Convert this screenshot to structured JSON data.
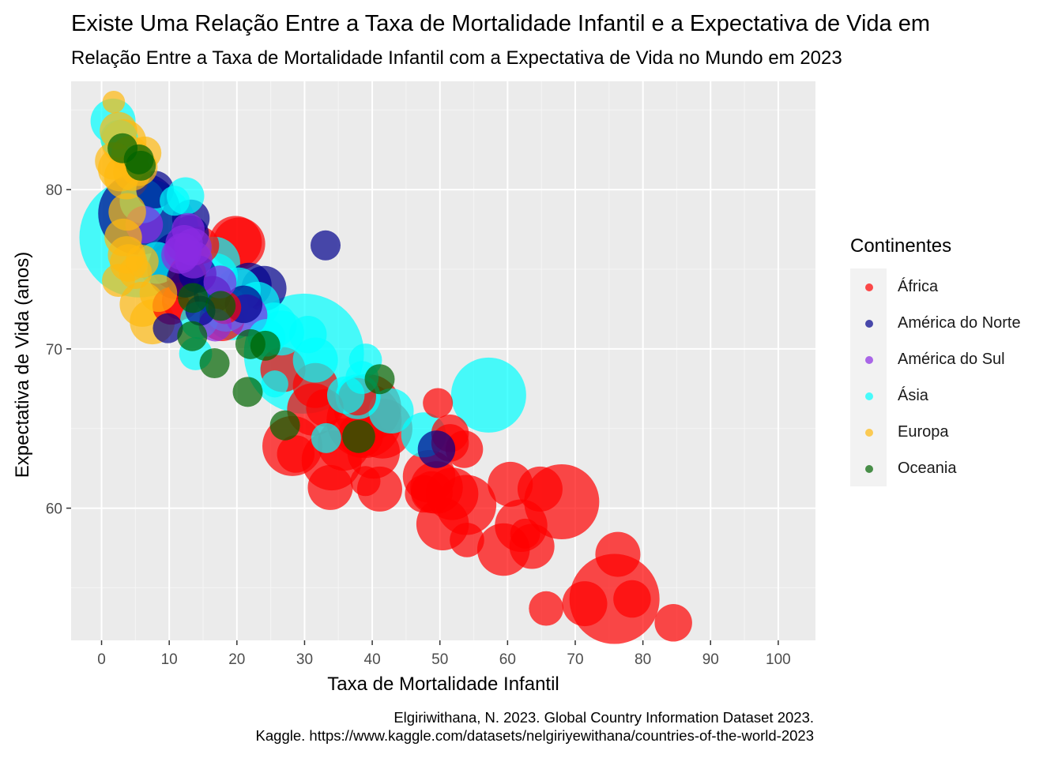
{
  "title": "Existe Uma Relação Entre a Taxa de Mortalidade Infantil e a Expectativa de Vida em",
  "subtitle": "Relação Entre a Taxa de Mortalidade Infantil com a Expectativa de Vida no Mundo em 2023",
  "caption": {
    "line1": "Elgiriwithana, N. 2023. Global Country Information Dataset 2023.",
    "line2": "Kaggle. https://www.kaggle.com/datasets/nelgiriyewithana/countries-of-the-world-2023"
  },
  "legend": {
    "title": "Continentes",
    "items": [
      {
        "label": "África",
        "color": "#ff0000"
      },
      {
        "label": "América do Norte",
        "color": "#00008b"
      },
      {
        "label": "América do Sul",
        "color": "#8a2be2"
      },
      {
        "label": "Ásia",
        "color": "#00ffff"
      },
      {
        "label": "Europa",
        "color": "#ffb90f"
      },
      {
        "label": "Oceania",
        "color": "#006400"
      }
    ]
  },
  "chart_data": {
    "type": "scatter",
    "xlabel": "Taxa de Mortalidade Infantil",
    "ylabel": "Expectativa de Vida (anos)",
    "xlim": [
      -4.5,
      105.5
    ],
    "ylim": [
      51.7,
      86.8
    ],
    "x_ticks": [
      "0",
      "10",
      "20",
      "30",
      "40",
      "50",
      "60",
      "70",
      "80",
      "90",
      "100"
    ],
    "y_ticks": [
      "60",
      "70",
      "80"
    ],
    "grid": true,
    "legend_position": "right",
    "point_opacity": 0.7,
    "series": [
      {
        "name": "África",
        "color": "#ff0000",
        "points": [
          [
            75.8,
            54.3,
            6
          ],
          [
            84.5,
            52.8,
            2.5
          ],
          [
            78.4,
            54.3,
            2.5
          ],
          [
            76.3,
            57.1,
            3
          ],
          [
            71.4,
            54.0,
            3
          ],
          [
            65.7,
            53.7,
            2.3
          ],
          [
            68.0,
            60.4,
            5
          ],
          [
            64.8,
            61.2,
            3
          ],
          [
            60.4,
            61.5,
            3
          ],
          [
            63.6,
            57.6,
            3
          ],
          [
            62.0,
            58.9,
            3.5
          ],
          [
            62.6,
            58.4,
            2
          ],
          [
            59.4,
            57.4,
            3.5
          ],
          [
            54.0,
            58.0,
            2.3
          ],
          [
            53.9,
            60.2,
            4
          ],
          [
            51.8,
            60.9,
            3.5
          ],
          [
            50.4,
            59.0,
            3.5
          ],
          [
            49.5,
            61.3,
            3.5
          ],
          [
            48.8,
            61.0,
            2.8
          ],
          [
            47.6,
            60.9,
            2.5
          ],
          [
            48.4,
            62.0,
            3.5
          ],
          [
            53.6,
            63.7,
            2.5
          ],
          [
            51.5,
            64.1,
            2.5
          ],
          [
            51.5,
            64.7,
            2.5
          ],
          [
            49.7,
            66.6,
            2
          ],
          [
            41.1,
            61.2,
            3
          ],
          [
            39.0,
            61.7,
            2
          ],
          [
            33.8,
            61.3,
            3
          ],
          [
            34.0,
            63.0,
            4
          ],
          [
            35.8,
            64.0,
            3.5
          ],
          [
            40.2,
            63.5,
            3.5
          ],
          [
            41.5,
            65.0,
            4
          ],
          [
            38.3,
            64.6,
            3
          ],
          [
            38.8,
            65.5,
            5
          ],
          [
            39.3,
            66.3,
            4.5
          ],
          [
            33.0,
            66.3,
            2.5
          ],
          [
            31.3,
            66.2,
            3.5
          ],
          [
            31.6,
            67.7,
            3
          ],
          [
            28.7,
            63.4,
            2.5
          ],
          [
            28.2,
            63.9,
            4
          ],
          [
            26.8,
            68.7,
            3
          ],
          [
            37.8,
            67.0,
            2.5
          ],
          [
            20.3,
            76.6,
            3.5
          ],
          [
            19.8,
            76.7,
            3.5
          ],
          [
            14.6,
            76.5,
            2.5
          ],
          [
            12.7,
            74.7,
            2.5
          ],
          [
            10.3,
            72.7,
            2.5
          ],
          [
            11.7,
            73.0,
            2.5
          ],
          [
            17.8,
            71.9,
            3
          ],
          [
            18.2,
            72.6,
            2.2
          ]
        ]
      },
      {
        "name": "América do Norte",
        "color": "#00008b",
        "points": [
          [
            5.6,
            78.5,
            5.5
          ],
          [
            7.9,
            80.0,
            2.5
          ],
          [
            13.2,
            78.2,
            2.5
          ],
          [
            13.1,
            77.2,
            2.5
          ],
          [
            11.2,
            75.0,
            4
          ],
          [
            11.6,
            75.5,
            4
          ],
          [
            12.4,
            74.4,
            2.5
          ],
          [
            14.2,
            74.7,
            2.5
          ],
          [
            16.4,
            73.4,
            2.5
          ],
          [
            21.8,
            74.0,
            3
          ],
          [
            24.0,
            73.8,
            3
          ],
          [
            21.0,
            72.8,
            2.5
          ],
          [
            33.1,
            76.5,
            2
          ],
          [
            49.5,
            63.7,
            2.5
          ],
          [
            9.8,
            71.3,
            2
          ],
          [
            14.6,
            72.4,
            2
          ]
        ]
      },
      {
        "name": "América do Sul",
        "color": "#8a2be2",
        "points": [
          [
            6.3,
            77.8,
            2.5
          ],
          [
            12.2,
            76.6,
            2.5
          ],
          [
            13.5,
            76.4,
            2.5
          ],
          [
            12.0,
            76.1,
            2.5
          ],
          [
            11.6,
            75.9,
            2.5
          ],
          [
            13.6,
            75.6,
            2.5
          ],
          [
            17.5,
            74.2,
            2.2
          ],
          [
            16.8,
            71.5,
            2.2
          ],
          [
            21.4,
            72.1,
            2.8
          ],
          [
            12.8,
            77.5,
            2.2
          ]
        ]
      },
      {
        "name": "Ásia",
        "color": "#00ffff",
        "points": [
          [
            1.7,
            84.3,
            3
          ],
          [
            2.6,
            83.2,
            2.5
          ],
          [
            5.6,
            77.0,
            8
          ],
          [
            6.0,
            79.3,
            3
          ],
          [
            10.8,
            79.3,
            2
          ],
          [
            12.4,
            79.6,
            2.5
          ],
          [
            8.2,
            75.4,
            2.8
          ],
          [
            16.6,
            75.4,
            3.5
          ],
          [
            16.8,
            74.6,
            3
          ],
          [
            20.2,
            73.7,
            3
          ],
          [
            23.0,
            72.8,
            3
          ],
          [
            18.4,
            72.5,
            3
          ],
          [
            19.2,
            72.2,
            3.5
          ],
          [
            25.5,
            71.5,
            3
          ],
          [
            26.6,
            71.0,
            3
          ],
          [
            29.9,
            69.7,
            8
          ],
          [
            31.6,
            69.3,
            3
          ],
          [
            30.5,
            70.9,
            2.5
          ],
          [
            14.4,
            71.8,
            2.5
          ],
          [
            13.9,
            69.7,
            2.2
          ],
          [
            24.4,
            70.7,
            2.5
          ],
          [
            39.0,
            69.3,
            2.2
          ],
          [
            38.5,
            68.2,
            2.2
          ],
          [
            37.9,
            67.0,
            3
          ],
          [
            36.1,
            67.1,
            2.5
          ],
          [
            42.8,
            66.1,
            3
          ],
          [
            47.6,
            64.6,
            3
          ],
          [
            57.2,
            67.1,
            5
          ],
          [
            33.2,
            64.4,
            2
          ],
          [
            25.6,
            67.8,
            1.8
          ]
        ]
      },
      {
        "name": "Europa",
        "color": "#ffb90f",
        "points": [
          [
            1.8,
            85.5,
            1.5
          ],
          [
            2.5,
            83.7,
            2.5
          ],
          [
            3.3,
            83.0,
            3
          ],
          [
            1.8,
            81.8,
            2.5
          ],
          [
            2.8,
            81.3,
            3
          ],
          [
            3.7,
            80.8,
            3
          ],
          [
            4.2,
            82.2,
            2.5
          ],
          [
            4.5,
            81.1,
            2.5
          ],
          [
            5.5,
            81.4,
            2.5
          ],
          [
            6.4,
            82.3,
            2.2
          ],
          [
            3.8,
            78.6,
            2.5
          ],
          [
            3.2,
            77.0,
            2.5
          ],
          [
            3.7,
            75.9,
            2.5
          ],
          [
            4.0,
            75.4,
            2.5
          ],
          [
            5.0,
            74.8,
            2.2
          ],
          [
            2.5,
            74.3,
            2.2
          ],
          [
            6.0,
            72.8,
            3
          ],
          [
            7.5,
            71.7,
            3
          ],
          [
            8.4,
            73.5,
            2.5
          ],
          [
            6.0,
            75.5,
            2.2
          ]
        ]
      },
      {
        "name": "Oceania",
        "color": "#006400",
        "points": [
          [
            3.1,
            82.6,
            2
          ],
          [
            5.5,
            81.9,
            2
          ],
          [
            5.8,
            81.5,
            2
          ],
          [
            13.4,
            70.8,
            2
          ],
          [
            16.7,
            69.1,
            2
          ],
          [
            21.6,
            67.3,
            2
          ],
          [
            22.0,
            70.3,
            2
          ],
          [
            24.2,
            70.2,
            2
          ],
          [
            27.1,
            65.2,
            2
          ],
          [
            41.1,
            68.1,
            2
          ],
          [
            38.0,
            64.5,
            2.2
          ],
          [
            13.5,
            73.2,
            2
          ],
          [
            17.6,
            72.7,
            2
          ]
        ]
      }
    ]
  }
}
